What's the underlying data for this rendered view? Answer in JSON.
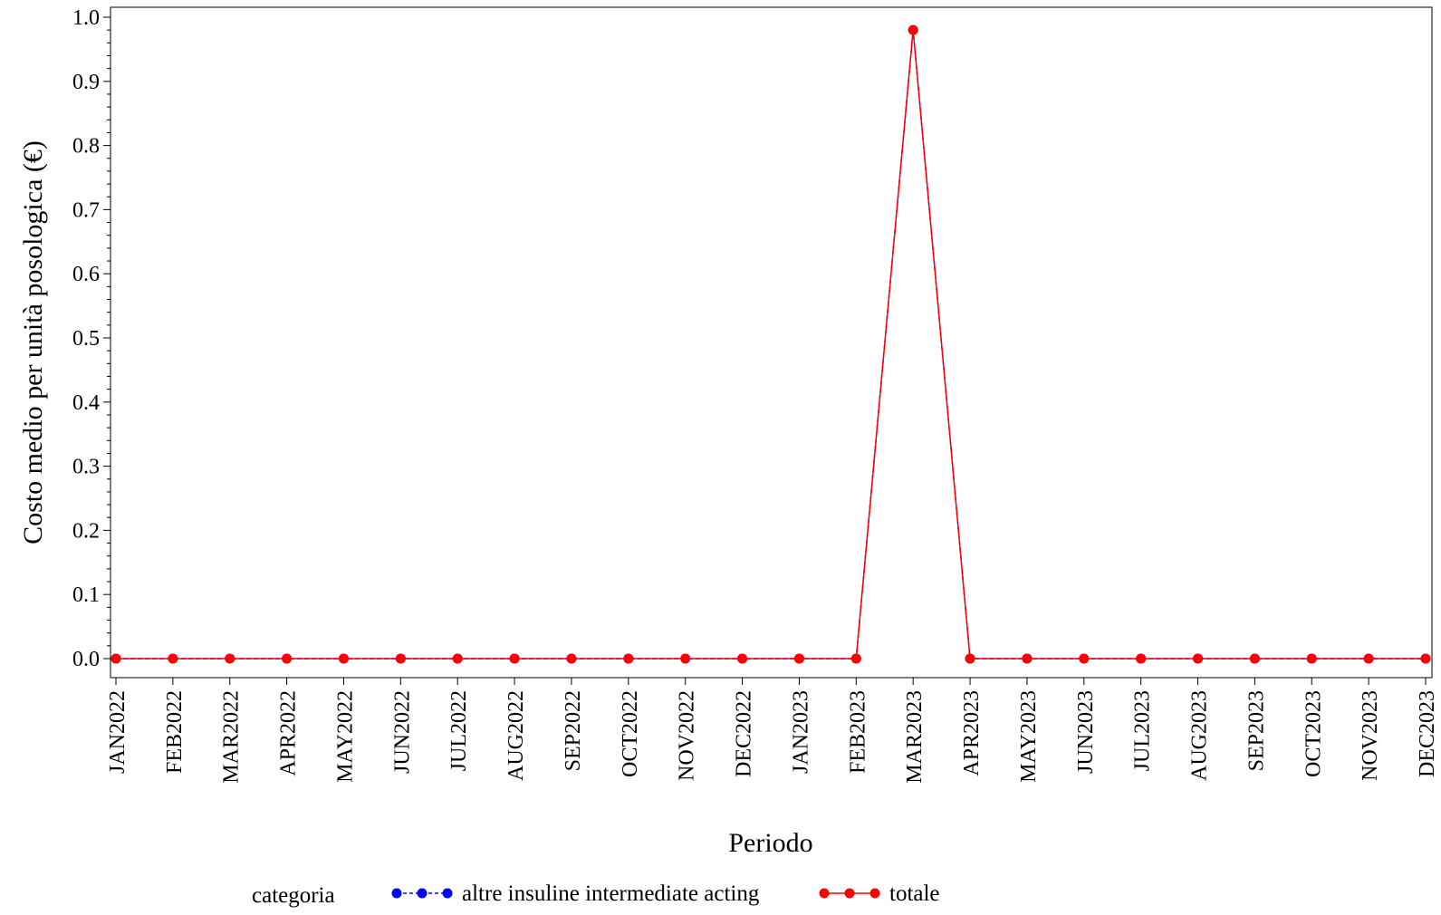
{
  "chart_data": {
    "type": "line",
    "title": "",
    "xlabel": "Periodo",
    "ylabel": "Costo medio per unità posologica (€)",
    "categories": [
      "JAN2022",
      "FEB2022",
      "MAR2022",
      "APR2022",
      "MAY2022",
      "JUN2022",
      "JUL2022",
      "AUG2022",
      "SEP2022",
      "OCT2022",
      "NOV2022",
      "DEC2022",
      "JAN2023",
      "FEB2023",
      "MAR2023",
      "APR2023",
      "MAY2023",
      "JUN2023",
      "JUL2023",
      "AUG2023",
      "SEP2023",
      "OCT2023",
      "NOV2023",
      "DEC2023"
    ],
    "ylim": [
      0,
      1.0
    ],
    "yticks": [
      "0.0",
      "0.1",
      "0.2",
      "0.3",
      "0.4",
      "0.5",
      "0.6",
      "0.7",
      "0.8",
      "0.9",
      "1.0"
    ],
    "series": [
      {
        "name": "altre insuline intermediate acting",
        "color": "#0000ff",
        "line_style": "dashed",
        "values": [
          0,
          0,
          0,
          0,
          0,
          0,
          0,
          0,
          0,
          0,
          0,
          0,
          0,
          0,
          0.98,
          0,
          0,
          0,
          0,
          0,
          0,
          0,
          0,
          0
        ]
      },
      {
        "name": "totale",
        "color": "#ff0000",
        "line_style": "solid",
        "values": [
          0,
          0,
          0,
          0,
          0,
          0,
          0,
          0,
          0,
          0,
          0,
          0,
          0,
          0,
          0.98,
          0,
          0,
          0,
          0,
          0,
          0,
          0,
          0,
          0
        ]
      }
    ],
    "legend": {
      "title": "categoria",
      "position": "bottom"
    },
    "grid": false
  }
}
